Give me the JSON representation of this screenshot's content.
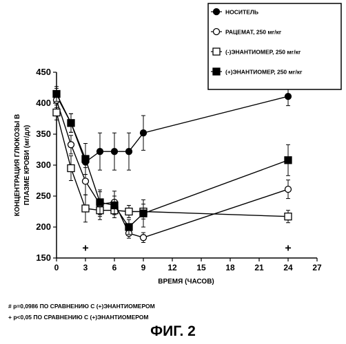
{
  "chart_data": {
    "type": "line",
    "xlabel": "ВРЕМЯ (ЧАСОВ)",
    "ylabel": [
      "КОНЦЕНТРАЦИЯ ГЛЮКОЗЫ В",
      "ПЛАЗМЕ КРОВИ (мг/дл)"
    ],
    "xlim": [
      0,
      27
    ],
    "ylim": [
      150,
      450
    ],
    "xticks": [
      "0",
      "3",
      "6",
      "9",
      "12",
      "15",
      "18",
      "21",
      "24",
      "27"
    ],
    "yticks": [
      "150",
      "200",
      "250",
      "300",
      "350",
      "400",
      "450"
    ],
    "legend_position": "top-right",
    "series": [
      {
        "name": "НОСИТЕЛЬ",
        "marker": "filled-circle",
        "x": [
          0,
          1.5,
          3,
          4.5,
          6,
          7.5,
          9,
          24
        ],
        "y": [
          412,
          368,
          305,
          322,
          322,
          322,
          352,
          411
        ],
        "err": [
          12,
          15,
          30,
          30,
          30,
          30,
          28,
          15
        ]
      },
      {
        "name": "РАЦЕМАТ, 250 мг/кг",
        "marker": "open-circle",
        "x": [
          0,
          1.5,
          3,
          4.5,
          6,
          7.5,
          9,
          24
        ],
        "y": [
          405,
          333,
          274,
          237,
          240,
          190,
          183,
          261
        ],
        "err": [
          12,
          15,
          22,
          20,
          18,
          8,
          8,
          15
        ]
      },
      {
        "name": "(-)ЭНАНТИОМЕР, 250 мг/кг",
        "marker": "open-square",
        "x": [
          0,
          1.5,
          3,
          4.5,
          6,
          7.5,
          9,
          24
        ],
        "y": [
          385,
          295,
          230,
          227,
          227,
          225,
          225,
          217
        ],
        "err": [
          12,
          20,
          22,
          15,
          12,
          10,
          12,
          10
        ]
      },
      {
        "name": "(+)ЭНАНТИОМЕР, 250 мг/кг",
        "marker": "filled-square",
        "x": [
          0,
          1.5,
          3,
          4.5,
          6,
          7.5,
          9,
          24
        ],
        "y": [
          415,
          368,
          310,
          240,
          235,
          200,
          222,
          308
        ],
        "err": [
          12,
          15,
          25,
          20,
          15,
          12,
          22,
          25
        ]
      }
    ],
    "annotations": [
      {
        "text": "+",
        "x": 3,
        "y": 166
      },
      {
        "text": "+",
        "x": 24,
        "y": 166
      }
    ],
    "footnotes": [
      "# p=0,0986 ПО СРАВНЕНИЮ С (+)ЭНАНТИОМЕРОМ",
      "+ p<0,05 ПО СРАВНЕНИЮ С (+)ЭНАНТИОМЕРОМ"
    ],
    "caption": "ФИГ. 2"
  }
}
